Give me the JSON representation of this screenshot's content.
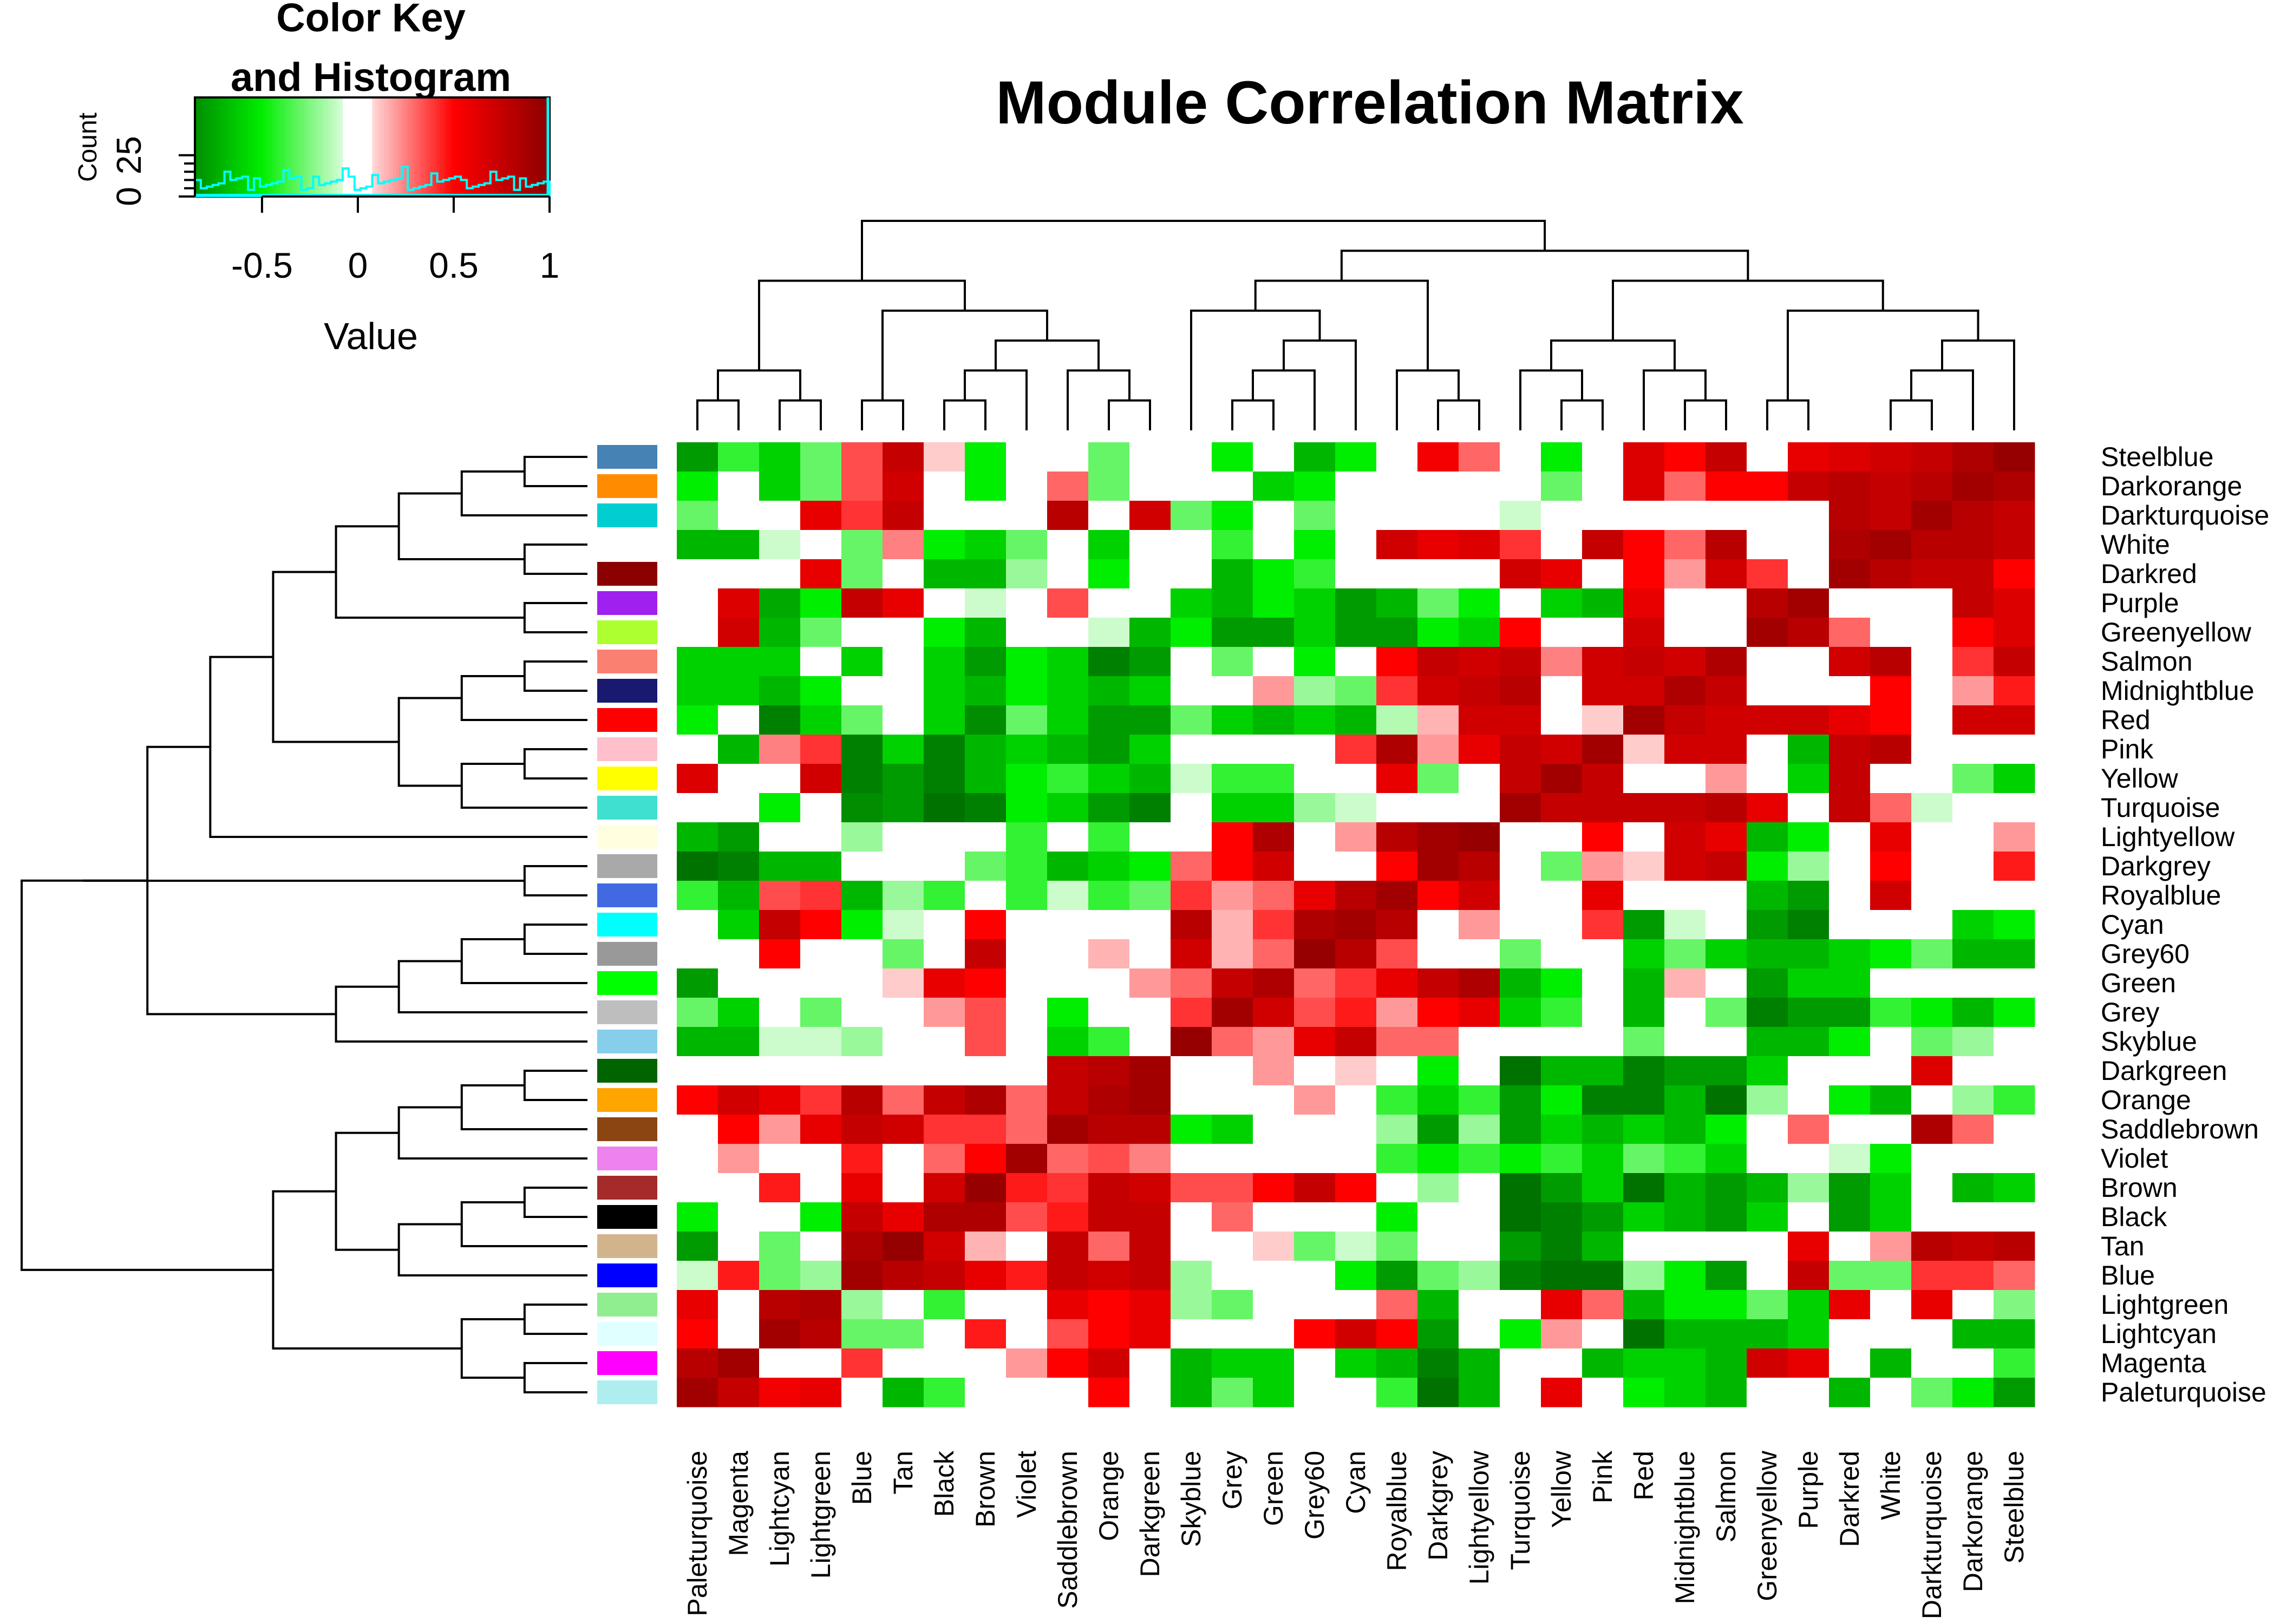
{
  "chart_data": {
    "type": "heatmap",
    "title": "Module Correlation Matrix",
    "color_key": {
      "title_line1": "Color Key",
      "title_line2": "and Histogram",
      "xlabel": "Value",
      "ylabel": "Count",
      "x_ticks": [
        "-0.5",
        "0",
        "0.5",
        "1"
      ],
      "x_tick_values": [
        -0.5,
        0,
        0.5,
        1
      ],
      "x_range": [
        -0.85,
        1
      ],
      "y_ticks": [
        "0",
        "25"
      ],
      "y_tick_values": [
        0,
        25
      ],
      "y_max": 60,
      "histogram_color": "#00ffff",
      "colors": {
        "low": "#006400",
        "low_mid": "#00ee00",
        "mid": "#ffffff",
        "high_mid": "#ff0000",
        "high": "#8b0000"
      }
    },
    "rows": [
      "Steelblue",
      "Darkorange",
      "Darkturquoise",
      "White",
      "Darkred",
      "Purple",
      "Greenyellow",
      "Salmon",
      "Midnightblue",
      "Red",
      "Pink",
      "Yellow",
      "Turquoise",
      "Lightyellow",
      "Darkgrey",
      "Royalblue",
      "Cyan",
      "Grey60",
      "Green",
      "Grey",
      "Skyblue",
      "Darkgreen",
      "Orange",
      "Saddlebrown",
      "Violet",
      "Brown",
      "Black",
      "Tan",
      "Blue",
      "Lightgreen",
      "Lightcyan",
      "Magenta",
      "Paleturquoise"
    ],
    "columns": [
      "Paleturquoise",
      "Magenta",
      "Lightcyan",
      "Lightgreen",
      "Blue",
      "Tan",
      "Black",
      "Brown",
      "Violet",
      "Saddlebrown",
      "Orange",
      "Darkgreen",
      "Skyblue",
      "Grey",
      "Green",
      "Grey60",
      "Cyan",
      "Royalblue",
      "Darkgrey",
      "Lightyellow",
      "Turquoise",
      "Yellow",
      "Pink",
      "Red",
      "Midnightblue",
      "Salmon",
      "Greenyellow",
      "Purple",
      "Darkred",
      "White",
      "Darkturquoise",
      "Darkorange",
      "Steelblue"
    ],
    "row_colors": [
      "#4682b4",
      "#ff8c00",
      "#00ced1",
      "#ffffff",
      "#8b0000",
      "#a020f0",
      "#adff2f",
      "#fa8072",
      "#191970",
      "#ff0000",
      "#ffc0cb",
      "#ffff00",
      "#40e0d0",
      "#ffffe0",
      "#a9a9a9",
      "#4169e1",
      "#00ffff",
      "#999999",
      "#00ff00",
      "#bebebe",
      "#87ceeb",
      "#006400",
      "#ffa500",
      "#8b4513",
      "#ee82ee",
      "#a52a2a",
      "#000000",
      "#d2b48c",
      "#0000ff",
      "#90ee90",
      "#e0ffff",
      "#ff00ff",
      "#afeeee"
    ],
    "values": [
      [
        -0.8,
        -0.4,
        -0.6,
        -0.3,
        0.35,
        0.75,
        0.1,
        -0.5,
        0,
        0,
        -0.3,
        0,
        -0.05,
        -0.5,
        0,
        -0.7,
        -0.5,
        0,
        0.55,
        0.3,
        0,
        -0.5,
        0,
        0.65,
        0.5,
        0.75,
        0,
        0.6,
        0.65,
        0.7,
        0.75,
        0.85,
        0.95
      ],
      [
        -0.5,
        0,
        -0.6,
        -0.3,
        0.35,
        0.7,
        0.05,
        -0.5,
        0,
        0.3,
        -0.3,
        0,
        0,
        0,
        -0.6,
        -0.5,
        0,
        -0.05,
        0,
        0,
        0,
        -0.3,
        0,
        0.65,
        0.3,
        0.5,
        0.5,
        0.75,
        0.8,
        0.75,
        0.8,
        0.9,
        0.85
      ],
      [
        -0.3,
        0,
        0,
        0.6,
        0.4,
        0.75,
        0,
        0,
        0,
        0.8,
        0,
        0.7,
        -0.3,
        -0.5,
        0,
        -0.3,
        0,
        0,
        0,
        0,
        -0.1,
        0,
        0,
        0,
        0,
        0,
        0,
        0.02,
        0.8,
        0.75,
        0.9,
        0.8,
        0.75
      ],
      [
        -0.7,
        -0.7,
        -0.1,
        0,
        -0.3,
        0.25,
        -0.5,
        -0.6,
        -0.3,
        0,
        -0.6,
        0,
        0,
        -0.4,
        0,
        -0.5,
        0,
        0.7,
        0.6,
        0.65,
        0.4,
        0,
        0.75,
        0.5,
        0.3,
        0.8,
        0,
        0,
        0.85,
        0.9,
        0.8,
        0.8,
        0.75
      ],
      [
        0,
        0,
        0,
        0.6,
        -0.3,
        0,
        -0.7,
        -0.7,
        -0.2,
        0.05,
        -0.5,
        -0.05,
        0,
        -0.7,
        -0.5,
        -0.4,
        0,
        -0.05,
        0,
        0,
        0.7,
        0.6,
        0,
        0.5,
        0.2,
        0.7,
        0.4,
        0,
        0.9,
        0.8,
        0.75,
        0.75,
        0.5
      ],
      [
        0,
        0.65,
        -0.75,
        -0.5,
        0.75,
        0.6,
        0,
        -0.1,
        0,
        0.35,
        0,
        0,
        -0.6,
        -0.7,
        -0.5,
        -0.6,
        -0.8,
        -0.7,
        -0.3,
        -0.5,
        0,
        -0.6,
        -0.7,
        0.6,
        0,
        0,
        0.8,
        0.9,
        0,
        0,
        0.02,
        0.75,
        0.65
      ],
      [
        0,
        0.7,
        -0.7,
        -0.3,
        0,
        0,
        -0.5,
        -0.7,
        0,
        0,
        -0.1,
        -0.7,
        -0.5,
        -0.8,
        -0.8,
        -0.6,
        -0.8,
        -0.8,
        -0.5,
        -0.6,
        0.5,
        0,
        0,
        0.7,
        0,
        0,
        0.9,
        0.8,
        0.3,
        0,
        0,
        0.5,
        0.65
      ],
      [
        -0.6,
        -0.6,
        -0.6,
        0,
        -0.6,
        0,
        -0.6,
        -0.8,
        -0.5,
        -0.6,
        -0.9,
        -0.8,
        0,
        -0.3,
        0,
        -0.5,
        0,
        0.5,
        0.75,
        0.7,
        0.75,
        0.25,
        0.7,
        0.75,
        0.7,
        0.85,
        0,
        0,
        0.7,
        0.8,
        0,
        0.4,
        0.75
      ],
      [
        -0.6,
        -0.6,
        -0.7,
        -0.5,
        0,
        0,
        -0.6,
        -0.7,
        -0.5,
        -0.6,
        -0.7,
        -0.6,
        0,
        0,
        0.2,
        -0.2,
        -0.3,
        0.4,
        0.7,
        0.75,
        0.8,
        0,
        0.7,
        0.7,
        0.85,
        0.75,
        0,
        0,
        0,
        0.5,
        0,
        0.2,
        0.45
      ],
      [
        -0.5,
        0,
        -0.9,
        -0.6,
        -0.3,
        0,
        -0.6,
        -0.85,
        -0.3,
        -0.6,
        -0.8,
        -0.8,
        -0.3,
        -0.6,
        -0.7,
        -0.6,
        -0.7,
        -0.15,
        0.15,
        0.7,
        0.7,
        0,
        0.1,
        0.9,
        0.75,
        0.7,
        0.7,
        0.7,
        0.6,
        0.5,
        0,
        0.7,
        0.7
      ],
      [
        -0.05,
        -0.7,
        0.25,
        0.4,
        -0.9,
        -0.6,
        -0.9,
        -0.7,
        -0.6,
        -0.7,
        -0.8,
        -0.6,
        0,
        0,
        0,
        0,
        0.4,
        0.85,
        0.2,
        0.6,
        0.75,
        0.7,
        0.9,
        0.1,
        0.7,
        0.7,
        0,
        -0.7,
        0.75,
        0.8,
        0,
        0,
        0
      ],
      [
        0.65,
        0,
        0,
        0.7,
        -0.9,
        -0.8,
        -0.9,
        -0.7,
        -0.5,
        -0.4,
        -0.6,
        -0.7,
        -0.1,
        -0.4,
        -0.4,
        0,
        0,
        0.6,
        -0.3,
        0,
        0.75,
        0.9,
        0.75,
        0,
        0,
        0.2,
        0,
        -0.6,
        0.75,
        0,
        0,
        -0.3,
        -0.6
      ],
      [
        0,
        0,
        -0.5,
        0,
        -0.85,
        -0.8,
        -0.95,
        -0.9,
        -0.5,
        -0.6,
        -0.8,
        -0.9,
        -0.05,
        -0.6,
        -0.6,
        -0.2,
        -0.1,
        0,
        0,
        0,
        0.9,
        0.75,
        0.75,
        0.75,
        0.75,
        0.8,
        0.6,
        0,
        0.75,
        0.3,
        -0.1,
        0,
        0
      ],
      [
        -0.7,
        -0.8,
        0,
        0,
        -0.2,
        0,
        0,
        0,
        -0.4,
        0,
        -0.4,
        0,
        0,
        0.5,
        0.85,
        0,
        0.2,
        0.8,
        0.9,
        0.95,
        0,
        0,
        0.5,
        0,
        0.7,
        0.6,
        -0.7,
        -0.5,
        0,
        0.6,
        0.02,
        0,
        0.2
      ],
      [
        -0.95,
        -0.9,
        -0.7,
        -0.7,
        0,
        0,
        0,
        -0.3,
        -0.4,
        -0.7,
        -0.6,
        -0.5,
        0.3,
        0.5,
        0.7,
        -0.05,
        0,
        0.5,
        0.9,
        0.8,
        0,
        -0.3,
        0.2,
        0.1,
        0.7,
        0.75,
        -0.5,
        -0.2,
        0,
        0.5,
        0,
        0,
        0.45
      ],
      [
        -0.4,
        -0.7,
        0.35,
        0.4,
        -0.7,
        -0.2,
        -0.4,
        0,
        -0.4,
        -0.1,
        -0.4,
        -0.3,
        0.4,
        0.2,
        0.3,
        0.6,
        0.8,
        0.9,
        0.5,
        0.7,
        0,
        0,
        0.6,
        0,
        0,
        0,
        -0.7,
        -0.8,
        0.05,
        0.7,
        0,
        -0.05,
        0
      ],
      [
        0,
        -0.6,
        0.75,
        0.5,
        -0.5,
        -0.1,
        0,
        0.5,
        0,
        0,
        0,
        0.05,
        0.8,
        0.15,
        0.4,
        0.85,
        0.9,
        0.8,
        0,
        0.2,
        -0.05,
        0,
        0.4,
        -0.8,
        -0.1,
        0,
        -0.8,
        -0.9,
        0,
        0,
        0,
        -0.6,
        -0.5
      ],
      [
        0,
        0,
        0.5,
        0,
        0,
        -0.3,
        0.02,
        0.75,
        0.05,
        0,
        0.15,
        0,
        0.7,
        0.15,
        0.3,
        0.95,
        0.8,
        0.35,
        0,
        0,
        -0.3,
        0,
        0,
        -0.6,
        -0.3,
        -0.6,
        -0.7,
        -0.7,
        -0.6,
        -0.5,
        -0.3,
        -0.7,
        -0.7
      ],
      [
        -0.8,
        0,
        0,
        0,
        0,
        0.1,
        0.6,
        0.5,
        0,
        0,
        0,
        0.2,
        0.3,
        0.75,
        0.85,
        0.3,
        0.4,
        0.6,
        0.75,
        0.85,
        -0.7,
        -0.5,
        0,
        -0.7,
        0.15,
        0,
        -0.8,
        -0.6,
        -0.6,
        0,
        0,
        0,
        0
      ],
      [
        -0.3,
        -0.6,
        0,
        -0.3,
        0,
        0,
        0.2,
        0.35,
        0,
        -0.5,
        0,
        0,
        0.4,
        0.9,
        0.7,
        0.35,
        0.45,
        0.2,
        0.5,
        0.6,
        -0.6,
        -0.4,
        0,
        -0.7,
        0,
        -0.3,
        -0.9,
        -0.8,
        -0.8,
        -0.4,
        -0.5,
        -0.7,
        -0.5
      ],
      [
        -0.7,
        -0.7,
        -0.1,
        -0.1,
        -0.2,
        0,
        0,
        0.35,
        0,
        -0.6,
        -0.4,
        0,
        0.95,
        0.3,
        0.2,
        0.6,
        0.75,
        0.3,
        0.3,
        0,
        -0.05,
        -0.05,
        0,
        -0.3,
        0,
        0,
        -0.7,
        -0.7,
        -0.5,
        0,
        -0.3,
        -0.2,
        -0.05
      ],
      [
        0,
        0,
        0,
        0,
        0,
        0,
        0,
        0,
        0,
        0.75,
        0.8,
        0.9,
        0,
        0,
        0.2,
        0,
        0.1,
        0,
        -0.5,
        0,
        -0.95,
        -0.7,
        -0.7,
        -0.9,
        -0.8,
        -0.8,
        -0.6,
        0,
        0,
        0,
        0.65,
        0,
        0
      ],
      [
        0.5,
        0.7,
        0.6,
        0.4,
        0.8,
        0.3,
        0.75,
        0.85,
        0.3,
        0.75,
        0.85,
        0.9,
        0,
        0,
        0,
        0.2,
        0,
        -0.4,
        -0.6,
        -0.4,
        -0.8,
        -0.5,
        -0.9,
        -0.9,
        -0.7,
        -0.95,
        -0.2,
        0,
        -0.5,
        -0.7,
        0,
        -0.2,
        -0.4
      ],
      [
        0,
        0.5,
        0.2,
        0.6,
        0.75,
        0.7,
        0.4,
        0.4,
        0.3,
        0.9,
        0.8,
        0.8,
        -0.5,
        -0.6,
        0,
        0,
        0,
        -0.2,
        -0.8,
        -0.2,
        -0.8,
        -0.6,
        -0.7,
        -0.6,
        -0.7,
        -0.5,
        0,
        0.3,
        0,
        0,
        0.85,
        0.3,
        0
      ],
      [
        0,
        0.2,
        0,
        0,
        0.45,
        0,
        0.3,
        0.5,
        0.9,
        0.3,
        0.35,
        0.25,
        0,
        0,
        0,
        0.05,
        0,
        -0.4,
        -0.5,
        -0.4,
        -0.5,
        -0.4,
        -0.6,
        -0.3,
        -0.4,
        -0.6,
        0,
        0,
        -0.1,
        -0.5,
        0,
        0,
        0
      ],
      [
        0,
        0,
        0.45,
        0,
        0.6,
        0,
        0.7,
        0.95,
        0.45,
        0.4,
        0.75,
        0.7,
        0.35,
        0.35,
        0.5,
        0.75,
        0.5,
        0,
        -0.2,
        0,
        -0.95,
        -0.8,
        -0.6,
        -0.95,
        -0.7,
        -0.8,
        -0.7,
        -0.2,
        -0.8,
        -0.6,
        0,
        -0.7,
        -0.6
      ],
      [
        -0.5,
        0,
        0,
        -0.5,
        0.75,
        0.6,
        0.85,
        0.85,
        0.35,
        0.45,
        0.75,
        0.75,
        0,
        0.3,
        0,
        0,
        0,
        -0.5,
        0,
        0,
        -0.95,
        -0.9,
        -0.8,
        -0.6,
        -0.7,
        -0.8,
        -0.6,
        0,
        -0.8,
        -0.6,
        0,
        0,
        0
      ],
      [
        -0.8,
        0,
        -0.3,
        0,
        0.85,
        0.95,
        0.7,
        0.15,
        0,
        0.75,
        0.3,
        0.75,
        0,
        0,
        0.1,
        -0.3,
        -0.1,
        -0.3,
        0,
        0,
        -0.8,
        -0.9,
        -0.7,
        0,
        0,
        0,
        0,
        0.6,
        0,
        0.2,
        0.8,
        0.75,
        0.8
      ],
      [
        -0.1,
        0.45,
        -0.3,
        -0.2,
        0.9,
        0.8,
        0.75,
        0.6,
        0.45,
        0.75,
        0.7,
        0.75,
        -0.2,
        0,
        0,
        0,
        -0.5,
        -0.8,
        -0.3,
        -0.2,
        -0.9,
        -0.95,
        -0.95,
        -0.2,
        -0.5,
        -0.8,
        0,
        0.75,
        -0.3,
        -0.3,
        0.4,
        0.4,
        0.3
      ],
      [
        0.6,
        0,
        0.8,
        0.85,
        -0.2,
        0,
        -0.4,
        0,
        0,
        0.6,
        0.5,
        0.6,
        -0.2,
        -0.3,
        0,
        0,
        0,
        0.3,
        -0.7,
        0,
        0,
        0.6,
        0.3,
        -0.7,
        -0.5,
        -0.5,
        -0.3,
        -0.6,
        0.6,
        0,
        0.6,
        0,
        -0.25
      ],
      [
        0.5,
        0,
        0.9,
        0.8,
        -0.3,
        -0.3,
        0,
        0.45,
        0,
        0.35,
        0.5,
        0.6,
        0,
        0,
        0,
        0.5,
        0.7,
        0.5,
        -0.8,
        0,
        -0.5,
        0.2,
        0,
        -0.95,
        -0.7,
        -0.7,
        -0.7,
        -0.6,
        0,
        -0.05,
        0,
        -0.7,
        -0.7
      ],
      [
        0.8,
        0.9,
        0,
        0,
        0.4,
        0,
        0,
        0,
        0.2,
        0.5,
        0.7,
        0,
        -0.7,
        -0.6,
        -0.6,
        0,
        -0.6,
        -0.7,
        -0.9,
        -0.7,
        0,
        0,
        -0.7,
        -0.6,
        -0.6,
        -0.7,
        0.7,
        0.6,
        0,
        -0.7,
        0,
        0,
        -0.4
      ],
      [
        0.9,
        0.75,
        0.55,
        0.6,
        -0.05,
        -0.7,
        -0.4,
        0,
        0,
        0,
        0.5,
        0,
        -0.7,
        -0.3,
        -0.6,
        0,
        0,
        -0.4,
        -0.95,
        -0.7,
        0,
        0.6,
        -0.05,
        -0.5,
        -0.6,
        -0.7,
        0,
        0,
        -0.7,
        0,
        -0.3,
        -0.5,
        -0.8
      ]
    ],
    "row_dendrogram": [
      [
        0,
        1
      ],
      [
        33,
        2
      ],
      [
        3,
        4
      ],
      [
        35,
        34
      ],
      [
        5,
        6
      ],
      [
        37,
        36
      ],
      [
        7,
        8
      ],
      [
        39,
        9
      ],
      [
        10,
        11
      ],
      [
        41,
        12
      ],
      [
        42,
        40
      ],
      [
        43,
        38
      ],
      [
        14,
        15
      ],
      [
        13,
        44
      ],
      [
        16,
        17
      ],
      [
        47,
        18
      ],
      [
        48,
        19
      ],
      [
        49,
        20
      ],
      [
        46,
        50
      ],
      [
        51,
        45
      ],
      [
        21,
        22
      ],
      [
        53,
        23
      ],
      [
        54,
        24
      ],
      [
        25,
        26
      ],
      [
        56,
        27
      ],
      [
        57,
        28
      ],
      [
        55,
        58
      ],
      [
        29,
        30
      ],
      [
        31,
        32
      ],
      [
        61,
        60
      ],
      [
        59,
        62
      ],
      [
        52,
        63
      ]
    ],
    "column_dendrogram": [
      [
        0,
        1
      ],
      [
        2,
        3
      ],
      [
        33,
        34
      ],
      [
        4,
        5
      ],
      [
        6,
        7
      ],
      [
        37,
        8
      ],
      [
        10,
        11
      ],
      [
        9,
        39
      ],
      [
        38,
        40
      ],
      [
        36,
        41
      ],
      [
        35,
        42
      ],
      [
        13,
        14
      ],
      [
        44,
        15
      ],
      [
        45,
        16
      ],
      [
        12,
        46
      ],
      [
        18,
        19
      ],
      [
        17,
        48
      ],
      [
        47,
        49
      ],
      [
        21,
        22
      ],
      [
        20,
        51
      ],
      [
        24,
        25
      ],
      [
        23,
        53
      ],
      [
        52,
        54
      ],
      [
        26,
        27
      ],
      [
        29,
        30
      ],
      [
        57,
        31
      ],
      [
        58,
        32
      ],
      [
        56,
        59
      ],
      [
        55,
        60
      ],
      [
        50,
        61
      ],
      [
        43,
        62
      ]
    ]
  }
}
